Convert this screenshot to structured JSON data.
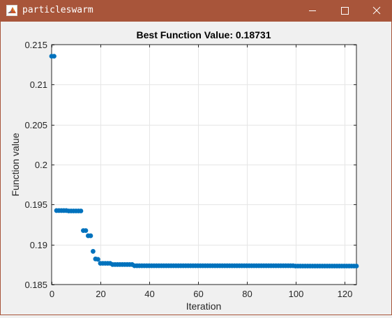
{
  "window": {
    "title": "particleswarm",
    "app_icon": "matlab-logo-icon",
    "title_bar_color": "#a8553a",
    "buttons": {
      "minimize_icon": "minimize-icon",
      "maximize_icon": "maximize-icon",
      "close_icon": "close-icon"
    }
  },
  "chart_data": {
    "type": "scatter",
    "title": "Best Function Value: 0.18731",
    "xlabel": "Iteration",
    "ylabel": "Function value",
    "xlim": [
      0,
      125
    ],
    "ylim": [
      0.185,
      0.215
    ],
    "xticks": [
      0,
      20,
      40,
      60,
      80,
      100,
      120
    ],
    "xtick_labels": [
      "0",
      "20",
      "40",
      "60",
      "80",
      "100",
      "120"
    ],
    "yticks": [
      0.185,
      0.19,
      0.195,
      0.2,
      0.205,
      0.21,
      0.215
    ],
    "ytick_labels": [
      "0.185",
      "0.19",
      "0.195",
      "0.2",
      "0.205",
      "0.21",
      "0.215"
    ],
    "grid": true,
    "marker_color": "#0072bd",
    "series": [
      {
        "x": [
          0,
          1,
          2,
          3,
          4,
          5,
          6,
          7,
          8,
          9,
          10,
          11,
          12,
          13,
          14,
          15,
          16,
          17,
          18,
          19,
          20,
          21,
          22,
          23,
          24,
          25,
          26,
          27,
          28,
          29,
          30,
          31,
          32,
          33,
          34,
          35,
          36,
          37,
          38,
          39,
          40,
          41,
          42,
          43,
          44,
          45,
          46,
          47,
          48,
          49,
          50,
          51,
          52,
          53,
          54,
          55,
          56,
          57,
          58,
          59,
          60,
          61,
          62,
          63,
          64,
          65,
          66,
          67,
          68,
          69,
          70,
          71,
          72,
          73,
          74,
          75,
          76,
          77,
          78,
          79,
          80,
          81,
          82,
          83,
          84,
          85,
          86,
          87,
          88,
          89,
          90,
          91,
          92,
          93,
          94,
          95,
          96,
          97,
          98,
          99,
          100,
          101,
          102,
          103,
          104,
          105,
          106,
          107,
          108,
          109,
          110,
          111,
          112,
          113,
          114,
          115,
          116,
          117,
          118,
          119,
          120,
          121,
          122,
          123,
          124,
          125
        ],
        "y": [
          0.21355,
          0.21355,
          0.19425,
          0.19425,
          0.19425,
          0.19425,
          0.19425,
          0.1942,
          0.1942,
          0.1942,
          0.1942,
          0.1942,
          0.1942,
          0.19175,
          0.19175,
          0.1911,
          0.1911,
          0.18915,
          0.1882,
          0.18815,
          0.18765,
          0.18765,
          0.18765,
          0.18765,
          0.18765,
          0.1875,
          0.1875,
          0.1875,
          0.1875,
          0.1875,
          0.1875,
          0.1875,
          0.1875,
          0.1875,
          0.18735,
          0.18735,
          0.18735,
          0.18735,
          0.18735,
          0.18735,
          0.18735,
          0.18735,
          0.18735,
          0.18735,
          0.18735,
          0.18735,
          0.18735,
          0.18735,
          0.18735,
          0.18735,
          0.18735,
          0.18735,
          0.18735,
          0.18735,
          0.18735,
          0.18735,
          0.18735,
          0.18735,
          0.18735,
          0.18735,
          0.18735,
          0.18735,
          0.18735,
          0.18735,
          0.18735,
          0.18735,
          0.18735,
          0.18735,
          0.18735,
          0.18735,
          0.18735,
          0.18735,
          0.18735,
          0.18735,
          0.18735,
          0.18735,
          0.18735,
          0.18735,
          0.18735,
          0.18735,
          0.18735,
          0.18735,
          0.18735,
          0.18735,
          0.18735,
          0.18735,
          0.18735,
          0.18735,
          0.18735,
          0.18735,
          0.18735,
          0.18735,
          0.18735,
          0.18735,
          0.18735,
          0.18735,
          0.18735,
          0.18735,
          0.18735,
          0.18735,
          0.18731,
          0.18731,
          0.18731,
          0.18731,
          0.18731,
          0.18731,
          0.18731,
          0.18731,
          0.18731,
          0.18731,
          0.18731,
          0.18731,
          0.18731,
          0.18731,
          0.18731,
          0.18731,
          0.18731,
          0.18731,
          0.18731,
          0.18731,
          0.18731,
          0.18731,
          0.18731,
          0.18731,
          0.18731,
          0.18731
        ]
      }
    ]
  }
}
